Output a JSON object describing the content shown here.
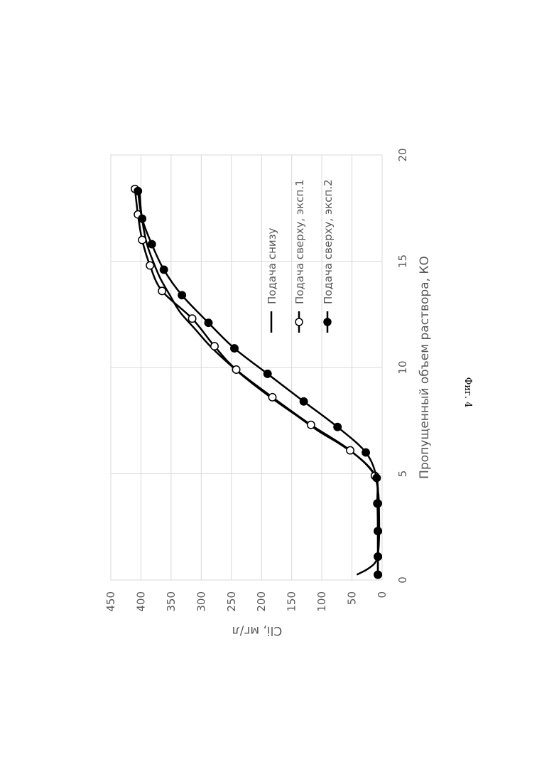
{
  "chart_data": {
    "type": "line",
    "xlabel": "Пропущенный объем раствора, КО",
    "ylabel": "Clі, мг/л",
    "xlim": [
      0,
      20
    ],
    "ylim": [
      0,
      450
    ],
    "x_ticks": [
      "0",
      "5",
      "10",
      "15",
      "20"
    ],
    "y_ticks": [
      "0",
      "50",
      "100",
      "150",
      "200",
      "250",
      "300",
      "350",
      "400",
      "450"
    ],
    "grid": true,
    "legend_position": "inside-left",
    "series": [
      {
        "name": "Подача снизу",
        "marker": "none",
        "x": [
          0.25,
          0.5,
          0.8,
          1.2,
          2.0,
          3.0,
          4.0,
          4.7,
          5.2,
          5.8,
          6.4,
          7.0,
          7.8,
          8.6,
          9.4,
          10.2,
          11.0,
          11.8,
          12.6,
          13.4,
          14.2,
          15.0,
          15.8,
          16.6,
          17.4,
          18.2,
          18.4
        ],
        "y": [
          42,
          25,
          12,
          7,
          5,
          5,
          6,
          10,
          18,
          40,
          70,
          105,
          145,
          185,
          222,
          255,
          285,
          310,
          335,
          352,
          368,
          380,
          390,
          396,
          400,
          402,
          403
        ]
      },
      {
        "name": "Подача сверху, эксп.1",
        "marker": "open-circle",
        "x": [
          0.25,
          1.1,
          2.3,
          3.6,
          4.9,
          6.1,
          7.3,
          8.6,
          9.9,
          11.0,
          12.3,
          13.6,
          14.8,
          16.0,
          17.2,
          18.4
        ],
        "y": [
          7,
          7,
          7,
          8,
          12,
          53,
          118,
          182,
          242,
          278,
          315,
          365,
          385,
          398,
          405,
          410
        ]
      },
      {
        "name": "Подача сверху, эксп.2",
        "marker": "filled-circle",
        "x": [
          0.25,
          1.1,
          2.3,
          3.6,
          4.8,
          6.0,
          7.2,
          8.4,
          9.7,
          10.9,
          12.1,
          13.4,
          14.6,
          15.8,
          17.0,
          18.3
        ],
        "y": [
          7,
          7,
          7,
          7,
          9,
          27,
          74,
          130,
          190,
          245,
          288,
          332,
          362,
          382,
          398,
          405
        ]
      }
    ]
  },
  "caption": "Фиг. 4",
  "colors": {
    "line": "#000000",
    "grid": "#d9d9d9",
    "text": "#595959"
  }
}
